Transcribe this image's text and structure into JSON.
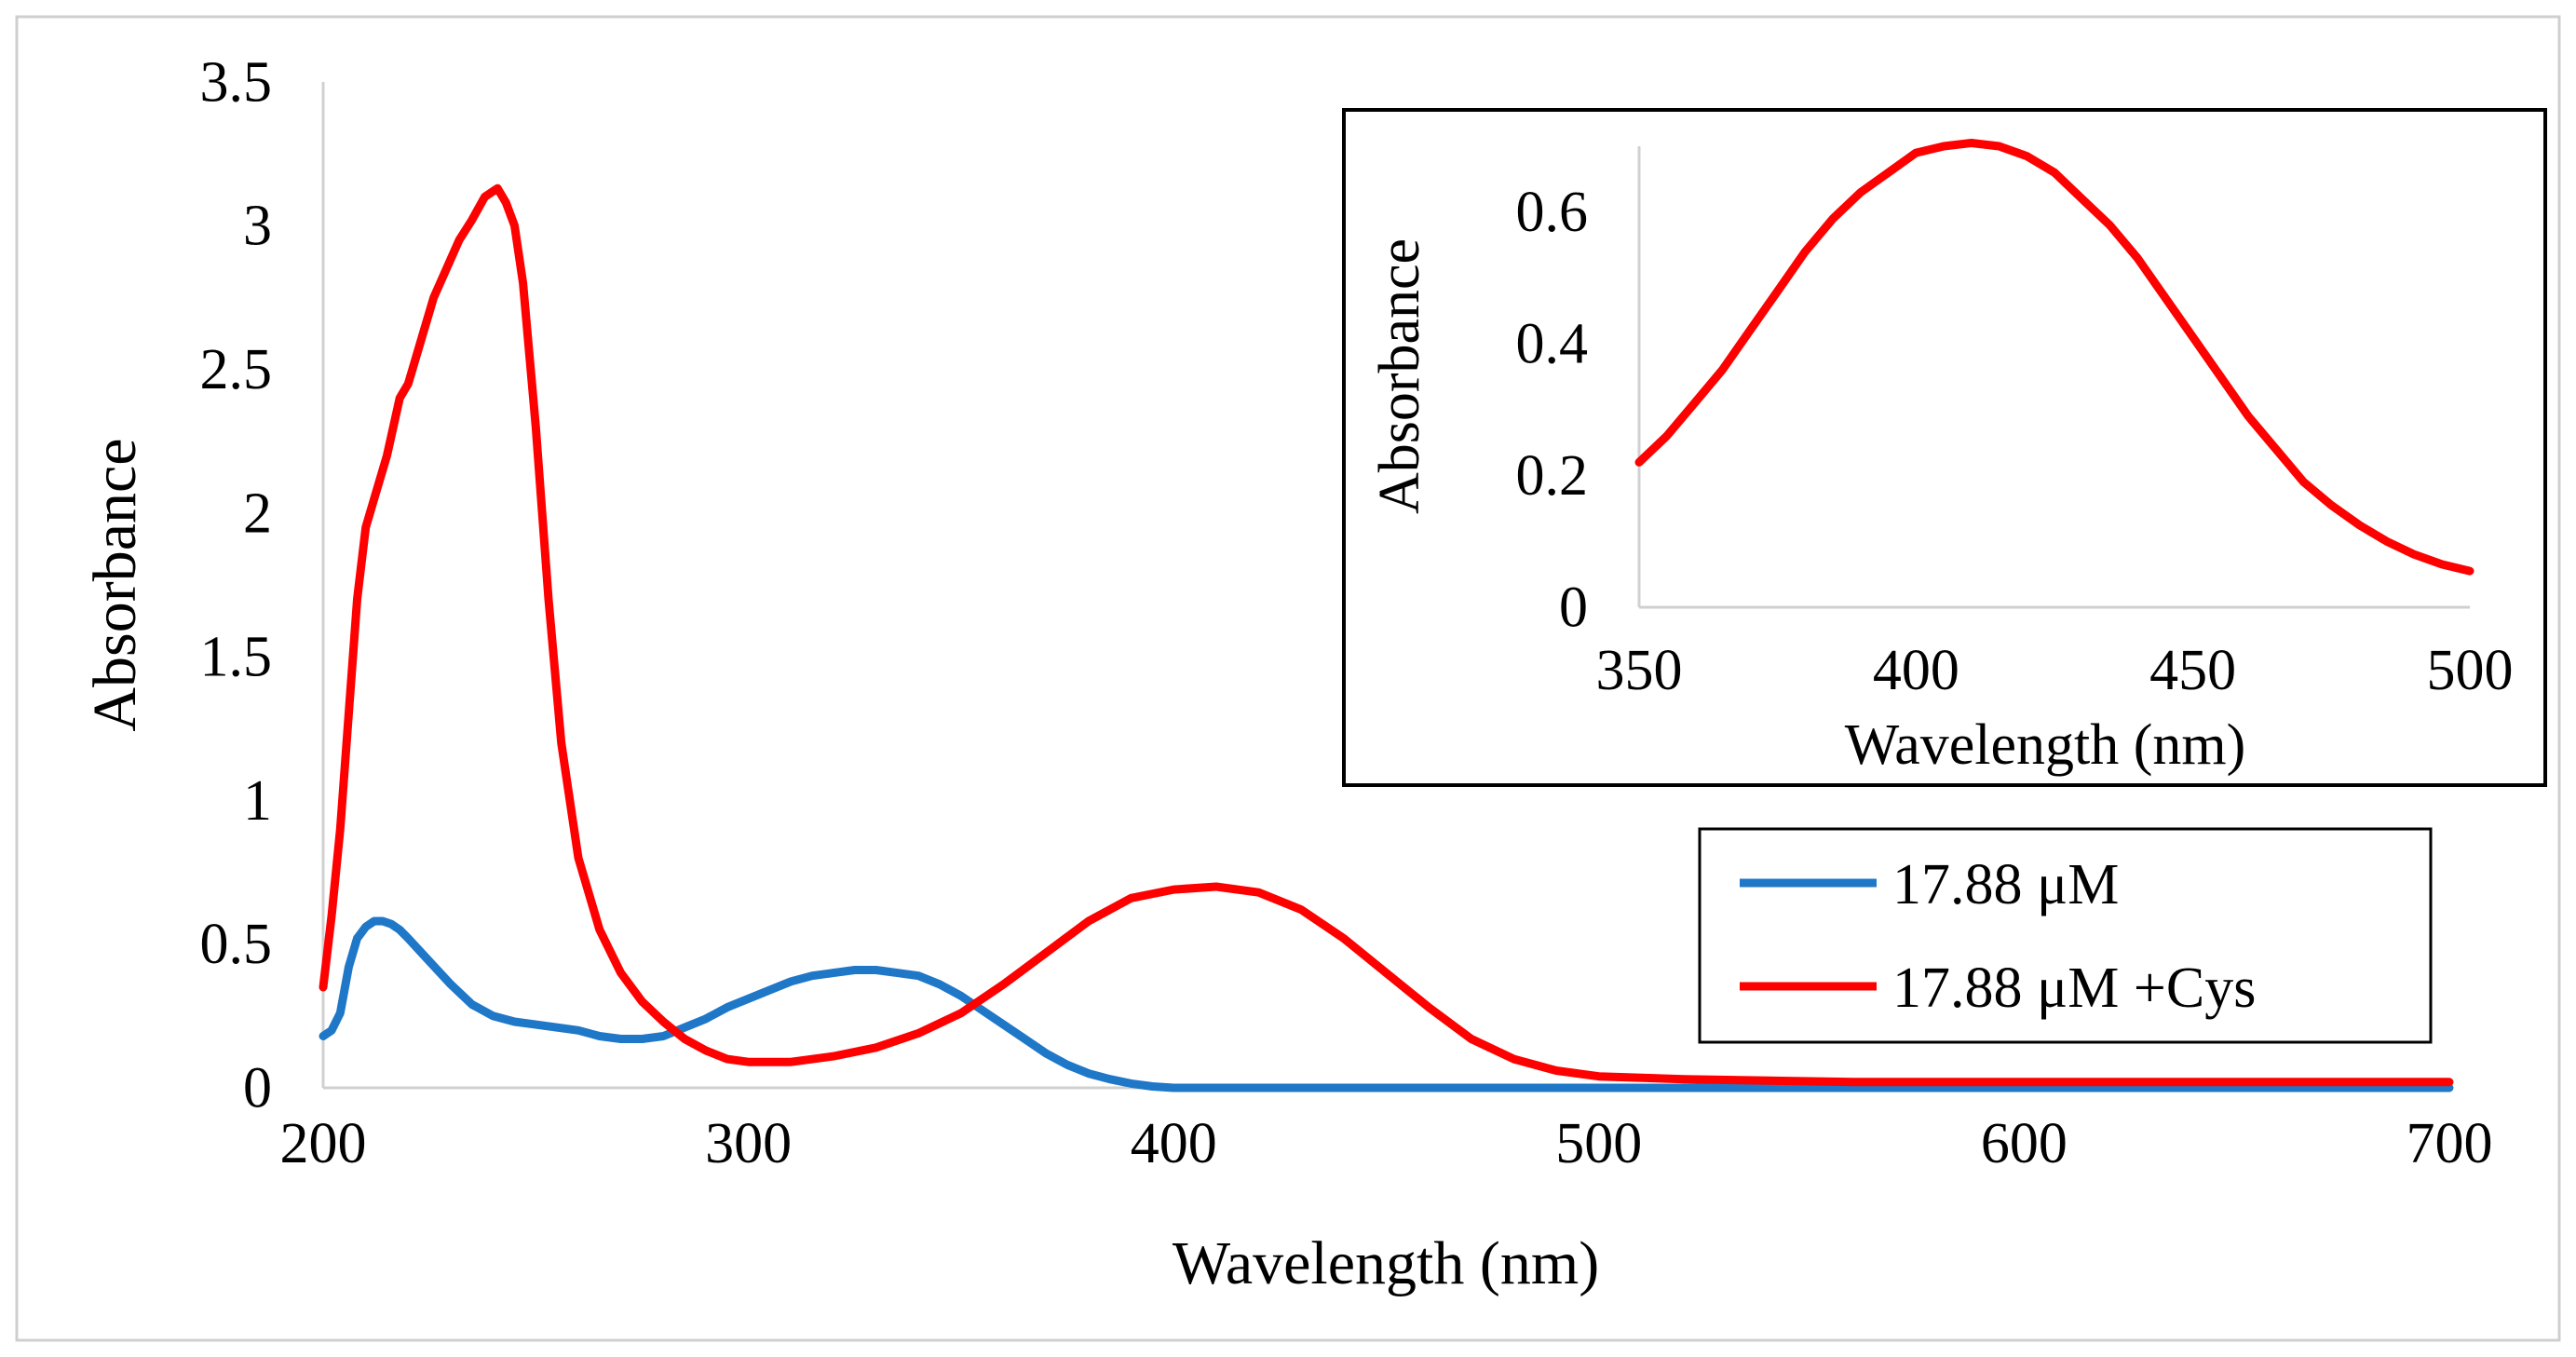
{
  "chart_data": [
    {
      "type": "line",
      "title": "",
      "xlabel": "Wavelength (nm)",
      "ylabel": "Absorbance",
      "xlim": [
        200,
        700
      ],
      "ylim": [
        0,
        3.5
      ],
      "xticks": [
        200,
        300,
        400,
        500,
        600,
        700
      ],
      "yticks": [
        0,
        0.5,
        1,
        1.5,
        2,
        2.5,
        3,
        3.5
      ],
      "xtick_labels": [
        "200",
        "300",
        "400",
        "500",
        "600",
        "700"
      ],
      "ytick_labels": [
        "0",
        "0.5",
        "1",
        "1.5",
        "2",
        "2.5",
        "3",
        "3.5"
      ],
      "grid": false,
      "legend_position": "right",
      "series": [
        {
          "name": "17.88 μM",
          "color": "#1f77c8",
          "x": [
            200,
            202,
            204,
            206,
            208,
            210,
            212,
            214,
            216,
            218,
            220,
            225,
            230,
            235,
            240,
            245,
            250,
            255,
            260,
            265,
            270,
            275,
            280,
            285,
            290,
            295,
            300,
            305,
            310,
            315,
            320,
            325,
            330,
            335,
            340,
            345,
            350,
            355,
            360,
            365,
            370,
            375,
            380,
            385,
            390,
            395,
            400,
            410,
            420,
            450,
            500,
            550,
            600,
            650,
            700
          ],
          "y": [
            0.18,
            0.2,
            0.26,
            0.42,
            0.52,
            0.56,
            0.58,
            0.58,
            0.57,
            0.55,
            0.52,
            0.44,
            0.36,
            0.29,
            0.25,
            0.23,
            0.22,
            0.21,
            0.2,
            0.18,
            0.17,
            0.17,
            0.18,
            0.21,
            0.24,
            0.28,
            0.31,
            0.34,
            0.37,
            0.39,
            0.4,
            0.41,
            0.41,
            0.4,
            0.39,
            0.36,
            0.32,
            0.27,
            0.22,
            0.17,
            0.12,
            0.08,
            0.05,
            0.03,
            0.015,
            0.005,
            0.0,
            0.0,
            0.0,
            0.0,
            0.0,
            0.0,
            0.0,
            0.0,
            0.0
          ]
        },
        {
          "name": "17.88 μM +Cys",
          "color": "#ff0000",
          "x": [
            200,
            202,
            204,
            206,
            208,
            210,
            212,
            215,
            218,
            220,
            223,
            226,
            229,
            232,
            235,
            238,
            240,
            241,
            243,
            245,
            247,
            250,
            253,
            256,
            260,
            265,
            270,
            275,
            280,
            285,
            290,
            295,
            300,
            305,
            310,
            320,
            330,
            340,
            350,
            360,
            370,
            380,
            390,
            400,
            410,
            420,
            430,
            440,
            450,
            460,
            470,
            480,
            490,
            500,
            520,
            540,
            560,
            600,
            650,
            700
          ],
          "y": [
            0.35,
            0.6,
            0.9,
            1.3,
            1.7,
            1.95,
            2.05,
            2.2,
            2.4,
            2.45,
            2.6,
            2.75,
            2.85,
            2.95,
            3.02,
            3.1,
            3.12,
            3.13,
            3.08,
            3.0,
            2.8,
            2.3,
            1.7,
            1.2,
            0.8,
            0.55,
            0.4,
            0.3,
            0.23,
            0.17,
            0.13,
            0.1,
            0.09,
            0.09,
            0.09,
            0.11,
            0.14,
            0.19,
            0.26,
            0.36,
            0.47,
            0.58,
            0.66,
            0.69,
            0.7,
            0.68,
            0.62,
            0.52,
            0.4,
            0.28,
            0.17,
            0.1,
            0.06,
            0.04,
            0.03,
            0.025,
            0.02,
            0.02,
            0.02,
            0.02
          ]
        }
      ]
    },
    {
      "type": "line",
      "title": "",
      "xlabel": "Wavelength (nm)",
      "ylabel": "Absorbance",
      "xlim": [
        350,
        500
      ],
      "ylim": [
        0,
        0.7
      ],
      "xticks": [
        350,
        400,
        450,
        500
      ],
      "yticks": [
        0,
        0.2,
        0.4,
        0.6
      ],
      "xtick_labels": [
        "350",
        "400",
        "450",
        "500"
      ],
      "ytick_labels": [
        "0",
        "0.2",
        "0.4",
        "0.6"
      ],
      "grid": false,
      "legend_position": "none",
      "series": [
        {
          "color": "#ff0000",
          "x": [
            350,
            355,
            360,
            365,
            370,
            375,
            380,
            385,
            390,
            395,
            400,
            405,
            410,
            415,
            420,
            425,
            430,
            435,
            440,
            445,
            450,
            455,
            460,
            465,
            470,
            475,
            480,
            485,
            490,
            495,
            500
          ],
          "y": [
            0.22,
            0.26,
            0.31,
            0.36,
            0.42,
            0.48,
            0.54,
            0.59,
            0.63,
            0.66,
            0.69,
            0.7,
            0.705,
            0.7,
            0.685,
            0.66,
            0.62,
            0.58,
            0.53,
            0.47,
            0.41,
            0.35,
            0.29,
            0.24,
            0.19,
            0.155,
            0.125,
            0.1,
            0.08,
            0.065,
            0.055
          ]
        }
      ]
    }
  ]
}
